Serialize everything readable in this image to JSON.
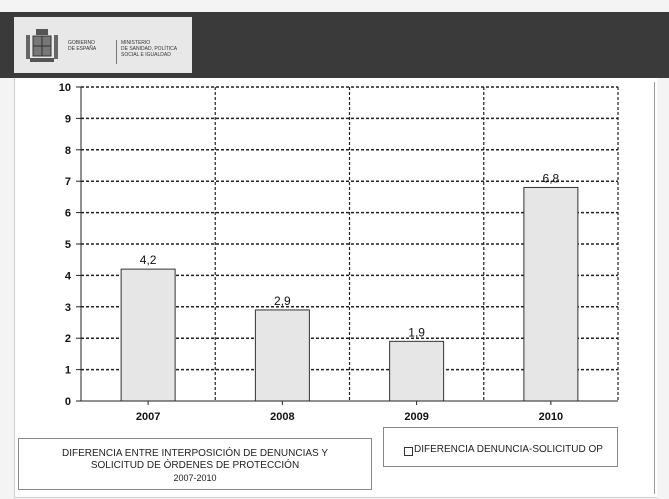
{
  "header": {
    "gov_line1": "GOBIERNO",
    "gov_line2": "DE ESPAÑA",
    "ministry_line1": "MINISTERIO",
    "ministry_line2": "DE SANIDAD, POLÍTICA",
    "ministry_line3": "SOCIAL E IGUALDAD",
    "logo_icon": "coat-of-arms-icon"
  },
  "chart_data": {
    "type": "bar",
    "title_lines": [
      "DIFERENCIA ENTRE INTERPOSICIÓN DE DENUNCIAS Y",
      "SOLICITUD DE ÓRDENES DE PROTECCIÓN"
    ],
    "subtitle": "2007-2010",
    "categories": [
      "2007",
      "2008",
      "2009",
      "2010"
    ],
    "series": [
      {
        "name": "DIFERENCIA DENUNCIA-SOLICITUD OP",
        "values": [
          4.2,
          2.9,
          1.9,
          6.8
        ]
      }
    ],
    "value_labels": [
      "4,2",
      "2,9",
      "1,9",
      "6,8"
    ],
    "yticks": [
      "0",
      "1",
      "2",
      "3",
      "4",
      "5",
      "6",
      "7",
      "8",
      "9",
      "10"
    ],
    "ylim": [
      0,
      10
    ],
    "grid": true,
    "legend_position": "bottom-right",
    "colors": {
      "bar_fill": "#e6e6e6",
      "bar_stroke": "#333333",
      "grid": "#222222"
    }
  }
}
